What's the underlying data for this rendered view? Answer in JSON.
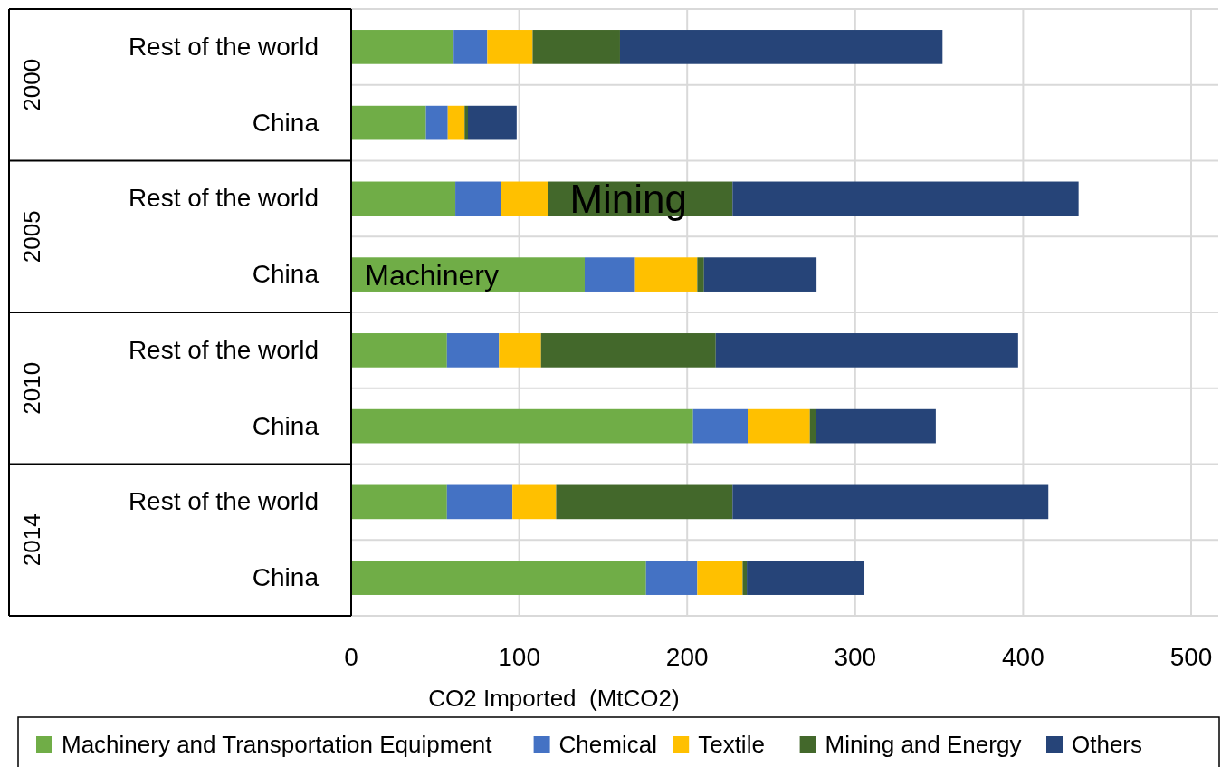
{
  "chart_data": {
    "type": "bar",
    "orientation": "horizontal",
    "stacked": true,
    "categories": [
      "Rest of the world",
      "China",
      "Rest of the world",
      "China",
      "Rest of the world",
      "China",
      "Rest of the world",
      "China"
    ],
    "series": [
      {
        "name": "Machinery and Transportation Equipment",
        "color": "#70ad47",
        "values": [
          61,
          44.5,
          62,
          139,
          57,
          203.5,
          57,
          175.5
        ]
      },
      {
        "name": "Chemical",
        "color": "#4472c4",
        "values": [
          20,
          13,
          27,
          30,
          31,
          32.5,
          39,
          30.5
        ]
      },
      {
        "name": "Textile",
        "color": "#ffc000",
        "values": [
          27,
          10,
          28,
          37,
          25,
          37,
          26,
          27
        ]
      },
      {
        "name": "Mining and Energy",
        "color": "#43682b",
        "values": [
          52,
          2,
          110,
          4,
          104,
          3.5,
          105,
          2.5
        ]
      },
      {
        "name": "Others",
        "color": "#264478",
        "values": [
          192,
          29,
          206,
          67,
          180,
          71.5,
          188,
          70
        ]
      }
    ],
    "xlim": [
      0,
      500
    ],
    "xticks": [
      0,
      100,
      200,
      300,
      400,
      500
    ],
    "xlabel": "CO2 Imported  (MtCO2)",
    "grid": "x",
    "legend": "bottom",
    "annotations": [
      "2000",
      "2005",
      "2010",
      "2014",
      "Mining",
      "Machinery"
    ]
  }
}
